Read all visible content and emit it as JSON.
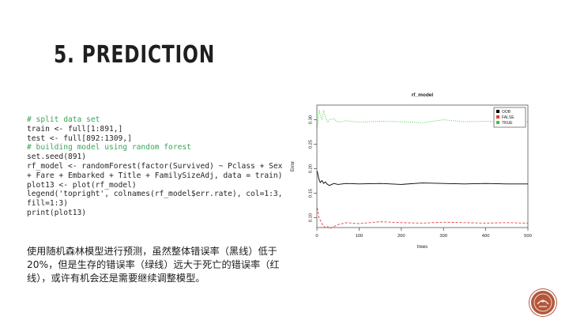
{
  "slide": {
    "title": "5. PREDICTION",
    "code_lines": [
      {
        "text": "# split data set",
        "kind": "comment"
      },
      {
        "text": "train <- full[1:891,]",
        "kind": "code"
      },
      {
        "text": "test <- full[892:1309,]",
        "kind": "code"
      },
      {
        "text": "# building model using random forest",
        "kind": "comment"
      },
      {
        "text": "set.seed(891)",
        "kind": "code"
      },
      {
        "text": "rf_model <- randomForest(factor(Survived) ~ Pclass + Sex + Fare + Embarked + Title + FamilySizeAdj, data = train)",
        "kind": "code"
      },
      {
        "text": "plot13 <- plot(rf_model)",
        "kind": "code"
      },
      {
        "text": "legend('topright', colnames(rf_model$err.rate), col=1:3, fill=1:3)",
        "kind": "code"
      },
      {
        "text": "print(plot13)",
        "kind": "code"
      }
    ],
    "description": "使用随机森林模型进行预测，虽然整体错误率（黑线）低于20%，但是生存的错误率（绿线）远大于死亡的错误率（红线），或许有机会还是需要继续调整模型。"
  },
  "chart_data": {
    "type": "line",
    "title": "rf_model",
    "xlabel": "trees",
    "ylabel": "Error",
    "xlim": [
      0,
      500
    ],
    "ylim": [
      0.08,
      0.33
    ],
    "x_ticks": [
      0,
      100,
      200,
      300,
      400,
      500
    ],
    "y_ticks": [
      0.1,
      0.15,
      0.2,
      0.25,
      0.3
    ],
    "legend_position": "top-right",
    "grid": false,
    "series": [
      {
        "name": "OOB",
        "color": "#000000",
        "dash": "solid",
        "x": [
          1,
          3,
          5,
          8,
          12,
          16,
          20,
          25,
          30,
          40,
          50,
          70,
          100,
          150,
          200,
          250,
          300,
          350,
          400,
          450,
          500
        ],
        "values": [
          0.195,
          0.185,
          0.178,
          0.172,
          0.176,
          0.17,
          0.173,
          0.168,
          0.166,
          0.17,
          0.168,
          0.17,
          0.169,
          0.17,
          0.168,
          0.171,
          0.17,
          0.169,
          0.17,
          0.169,
          0.169
        ]
      },
      {
        "name": "FALSE",
        "color": "#e33b3b",
        "dash": "dashed",
        "x": [
          1,
          3,
          5,
          8,
          12,
          16,
          20,
          25,
          30,
          40,
          50,
          70,
          100,
          150,
          200,
          250,
          300,
          350,
          400,
          450,
          500
        ],
        "values": [
          0.12,
          0.11,
          0.1,
          0.095,
          0.088,
          0.083,
          0.08,
          0.082,
          0.078,
          0.082,
          0.086,
          0.09,
          0.088,
          0.092,
          0.09,
          0.089,
          0.091,
          0.09,
          0.089,
          0.09,
          0.089
        ]
      },
      {
        "name": "TRUE",
        "color": "#39c43a",
        "dash": "dotted",
        "x": [
          1,
          3,
          5,
          8,
          12,
          16,
          20,
          25,
          30,
          40,
          50,
          70,
          100,
          150,
          200,
          250,
          300,
          350,
          400,
          450,
          500
        ],
        "values": [
          0.285,
          0.3,
          0.32,
          0.31,
          0.3,
          0.32,
          0.305,
          0.295,
          0.3,
          0.302,
          0.295,
          0.298,
          0.295,
          0.297,
          0.296,
          0.294,
          0.3,
          0.296,
          0.297,
          0.295,
          0.296
        ]
      }
    ]
  }
}
